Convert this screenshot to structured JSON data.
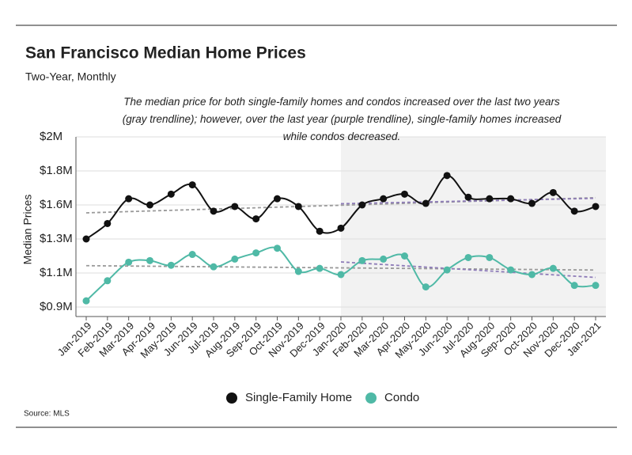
{
  "chart_data": {
    "type": "line",
    "title": "San Francisco Median Home Prices",
    "subtitle": "Two-Year, Monthly",
    "annotation": "The median price for both single-family homes and condos increased over the last two years (gray trendline); however, over the last year (purple trendline), single-family homes increased while condos decreased.",
    "y_label": "Median Prices",
    "source": "Source:  MLS",
    "categories": [
      "Jan-2019",
      "Feb-2019",
      "Mar-2019",
      "Apr-2019",
      "May-2019",
      "Jun-2019",
      "Jul-2019",
      "Aug-2019",
      "Sep-2019",
      "Oct-2019",
      "Nov-2019",
      "Dec-2019",
      "Jan-2020",
      "Feb-2020",
      "Mar-2020",
      "Apr-2020",
      "May-2020",
      "Jun-2020",
      "Jul-2020",
      "Aug-2020",
      "Sep-2020",
      "Oct-2020",
      "Nov-2020",
      "Dec-2020",
      "Jan-2021"
    ],
    "series": [
      {
        "name": "Single-Family Home",
        "color": "#111111",
        "values": [
          1.34,
          1.44,
          1.6,
          1.56,
          1.63,
          1.69,
          1.52,
          1.55,
          1.47,
          1.6,
          1.55,
          1.39,
          1.41,
          1.56,
          1.6,
          1.63,
          1.57,
          1.75,
          1.61,
          1.6,
          1.6,
          1.57,
          1.64,
          1.52,
          1.55
        ]
      },
      {
        "name": "Condo",
        "color": "#4fb9a6",
        "values": [
          0.94,
          1.07,
          1.19,
          1.2,
          1.17,
          1.24,
          1.16,
          1.21,
          1.25,
          1.28,
          1.13,
          1.15,
          1.11,
          1.2,
          1.21,
          1.23,
          1.03,
          1.14,
          1.22,
          1.22,
          1.14,
          1.11,
          1.15,
          1.04,
          1.04
        ]
      }
    ],
    "ylim": [
      0.9,
      2.0
    ],
    "yticks": [
      {
        "value": 0.9,
        "label": "$0.9M"
      },
      {
        "value": 1.12,
        "label": "$1.1M"
      },
      {
        "value": 1.34,
        "label": "$1.3M"
      },
      {
        "value": 1.56,
        "label": "$1.6M"
      },
      {
        "value": 1.78,
        "label": "$1.8M"
      },
      {
        "value": 2.0,
        "label": "$2M"
      }
    ],
    "grid": true,
    "trend_colors": {
      "two_year": "#9a9a9a",
      "last_year": "#8e7cb8"
    },
    "shade_from": "Jan-2020",
    "legend": "bottom"
  }
}
